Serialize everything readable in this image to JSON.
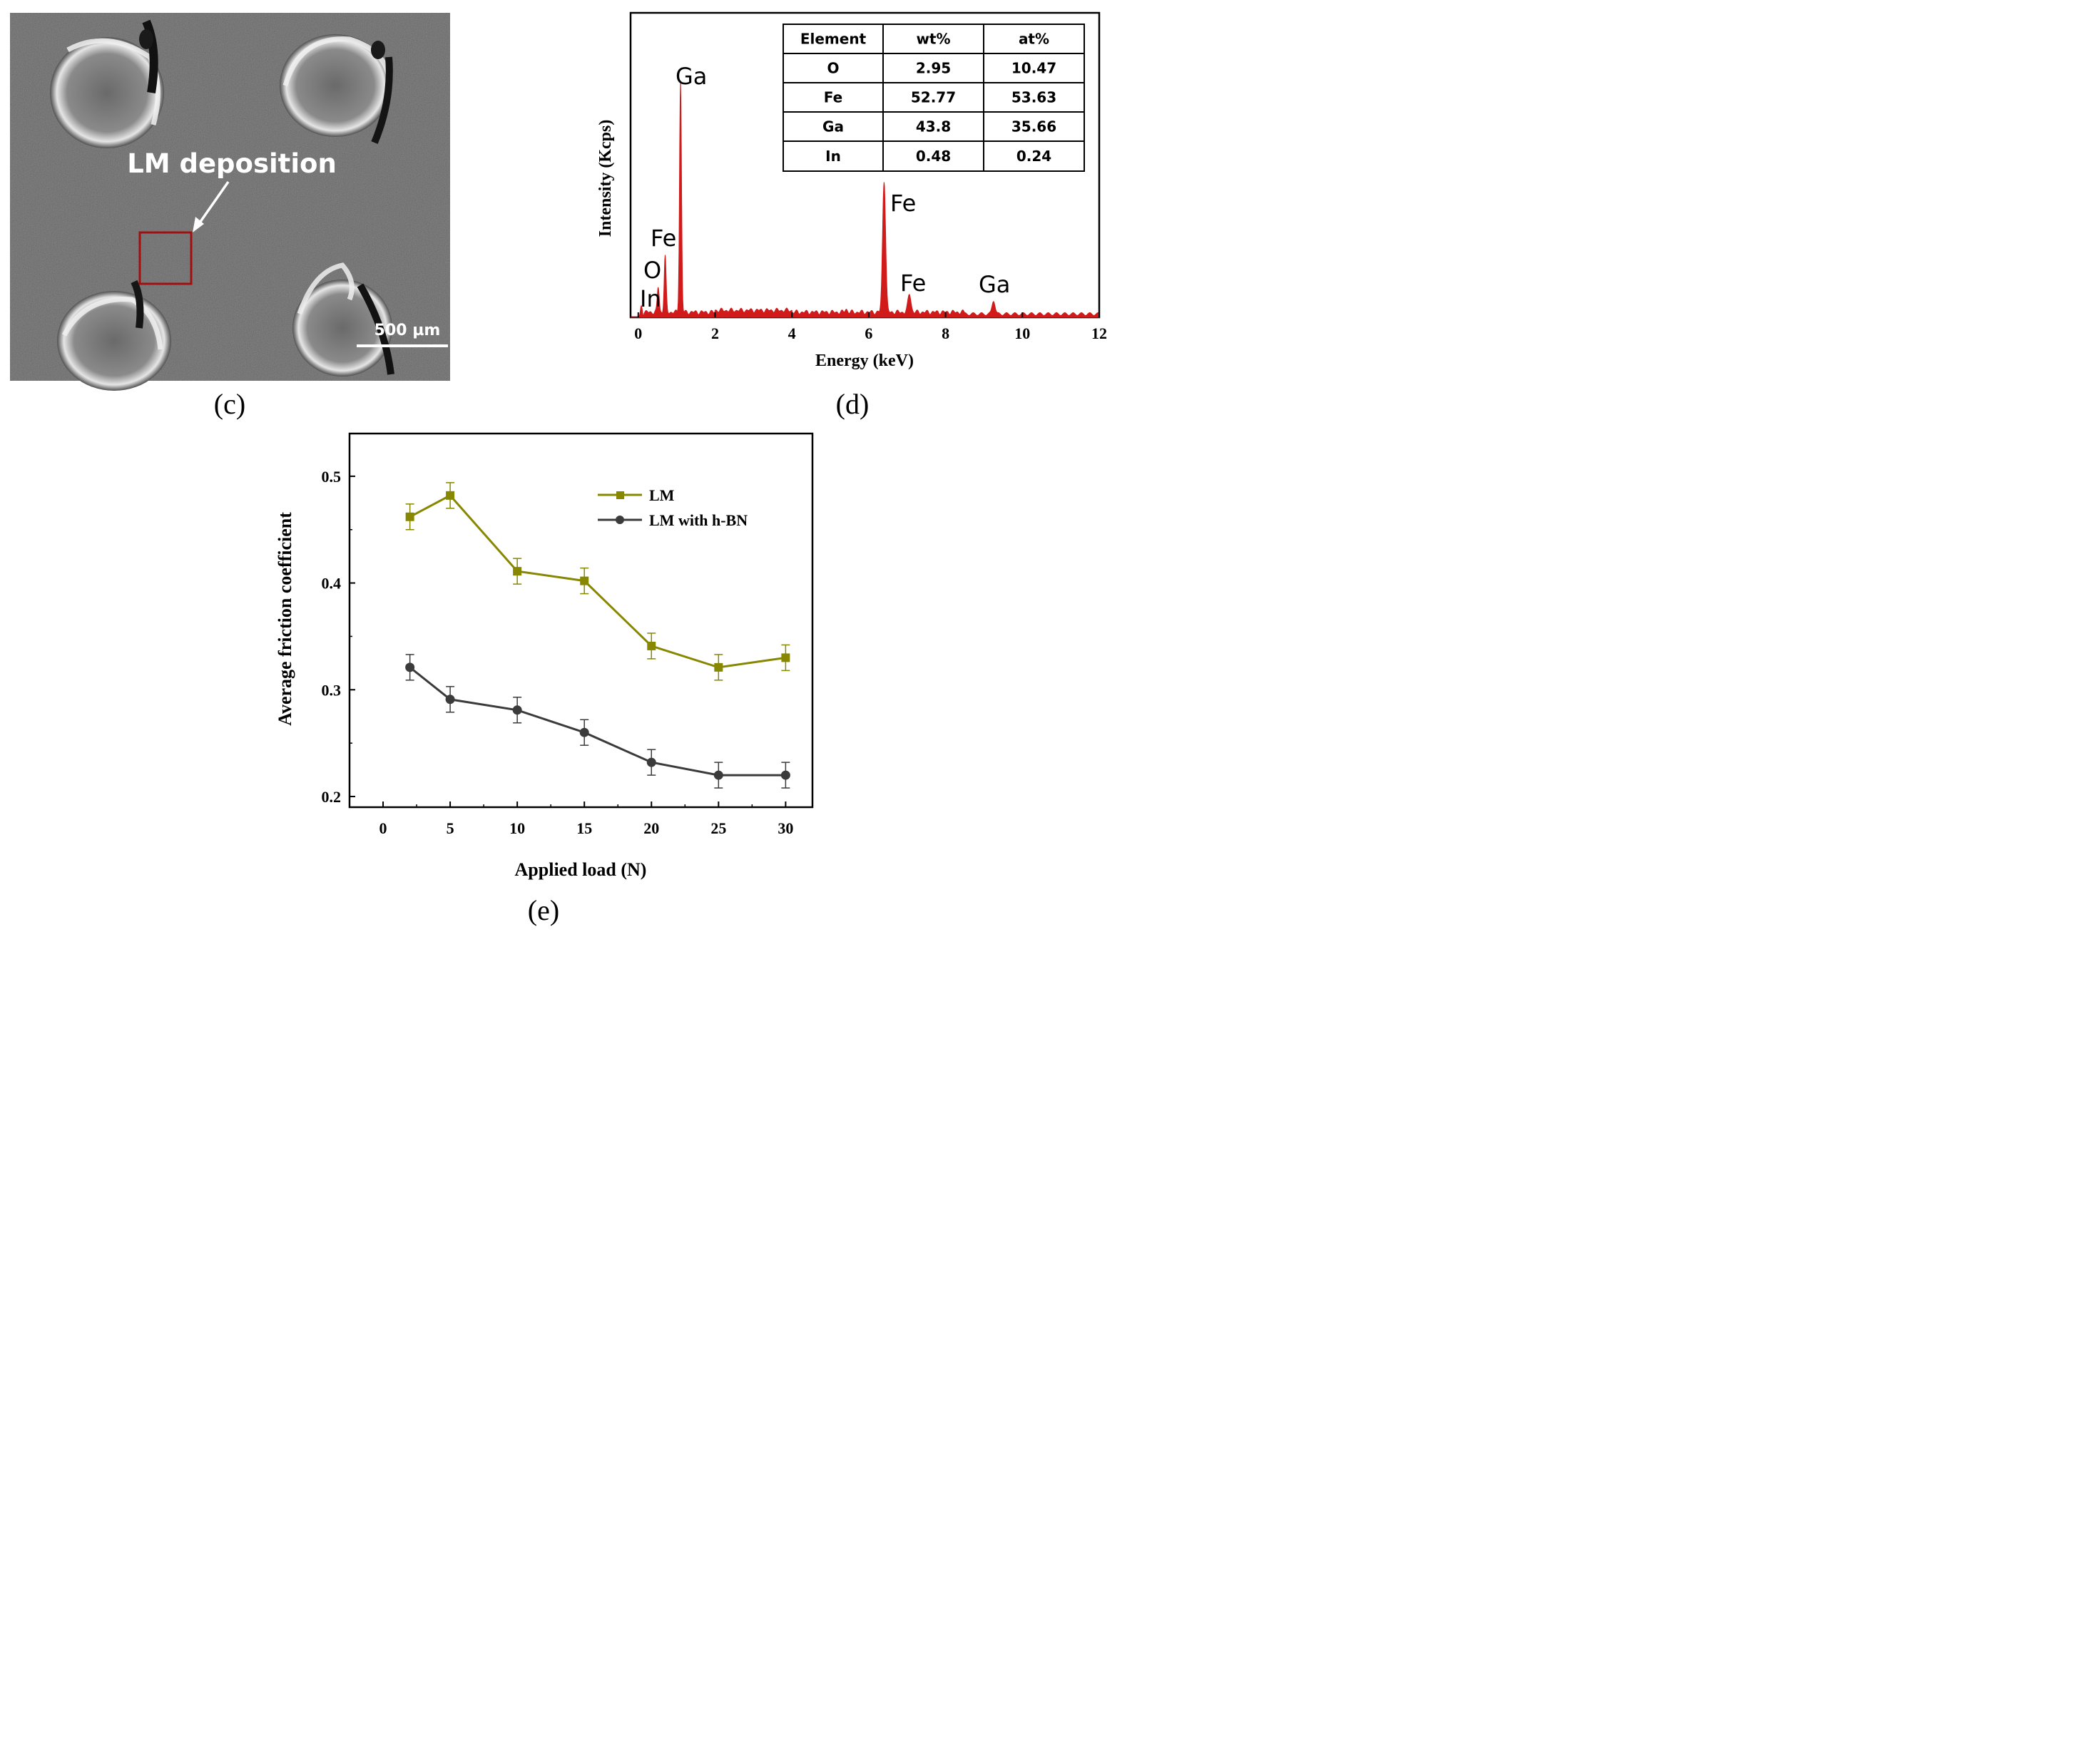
{
  "panel_c": {
    "label": "(c)",
    "annotation": "LM deposition",
    "scale_bar": "500 µm"
  },
  "panel_d": {
    "label": "(d)",
    "table": {
      "headers": [
        "Element",
        "wt%",
        "at%"
      ],
      "rows": [
        [
          "O",
          "2.95",
          "10.47"
        ],
        [
          "Fe",
          "52.77",
          "53.63"
        ],
        [
          "Ga",
          "43.8",
          "35.66"
        ],
        [
          "In",
          "0.48",
          "0.24"
        ]
      ]
    }
  },
  "panel_e": {
    "label": "(e)"
  },
  "chart_data": [
    {
      "type": "area",
      "title": "",
      "xlabel": "Energy (keV)",
      "ylabel": "Intensity (Kcps)",
      "xlim": [
        -0.2,
        12
      ],
      "ylim": [
        0,
        100
      ],
      "x_ticks": [
        0,
        2,
        4,
        6,
        8,
        10,
        12
      ],
      "color": "#d11a1a",
      "peaks": [
        {
          "element": "In",
          "energy": 0.08,
          "height": 5
        },
        {
          "element": "O",
          "energy": 0.52,
          "height": 11
        },
        {
          "element": "Fe",
          "energy": 0.7,
          "height": 24
        },
        {
          "element": "Ga",
          "energy": 1.1,
          "height": 100
        },
        {
          "element": "Fe",
          "energy": 6.4,
          "height": 57
        },
        {
          "element": "Fe",
          "energy": 7.06,
          "height": 8
        },
        {
          "element": "Ga",
          "energy": 9.25,
          "height": 6
        }
      ],
      "annotations": [
        "In",
        "O",
        "Fe",
        "Ga",
        "Fe",
        "Fe",
        "Ga"
      ]
    },
    {
      "type": "line",
      "title": "",
      "xlabel": "Applied load (N)",
      "ylabel": "Average friction coefficient",
      "xlim": [
        -2.5,
        32
      ],
      "ylim": [
        0.19,
        0.54
      ],
      "x_ticks": [
        0,
        5,
        10,
        15,
        20,
        25,
        30
      ],
      "y_ticks": [
        0.2,
        0.3,
        0.4,
        0.5
      ],
      "legend_position": "top-right",
      "x": [
        2,
        5,
        10,
        15,
        20,
        25,
        30
      ],
      "series": [
        {
          "name": "LM",
          "marker": "square",
          "color": "#878700",
          "values": [
            0.462,
            0.482,
            0.411,
            0.402,
            0.341,
            0.321,
            0.33
          ],
          "errors": [
            0.012,
            0.012,
            0.012,
            0.012,
            0.012,
            0.012,
            0.012
          ]
        },
        {
          "name": "LM with h-BN",
          "marker": "circle",
          "color": "#3b3b3b",
          "values": [
            0.321,
            0.291,
            0.281,
            0.26,
            0.232,
            0.22,
            0.22
          ],
          "errors": [
            0.012,
            0.012,
            0.012,
            0.012,
            0.012,
            0.012,
            0.012
          ]
        }
      ]
    }
  ]
}
